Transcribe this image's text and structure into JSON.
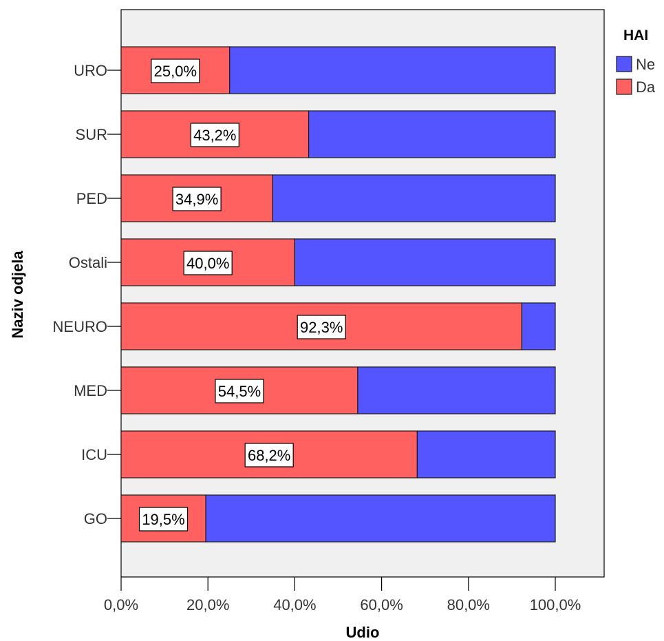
{
  "chart_data": {
    "type": "bar",
    "orientation": "horizontal",
    "stacked": true,
    "title": "",
    "xlabel": "Udio",
    "ylabel": "Naziv odjela",
    "xlim": [
      0,
      100
    ],
    "xticks": [
      0,
      20,
      40,
      60,
      80,
      100
    ],
    "xtick_labels": [
      "0,0%",
      "20,0%",
      "40,0%",
      "60,0%",
      "80,0%",
      "100,0%"
    ],
    "categories": [
      "URO",
      "SUR",
      "PED",
      "Ostali",
      "NEURO",
      "MED",
      "ICU",
      "GO"
    ],
    "series": [
      {
        "name": "Da",
        "color": "#ff6060",
        "values": [
          25.0,
          43.2,
          34.9,
          40.0,
          92.3,
          54.5,
          68.2,
          19.5
        ],
        "labels": [
          "25,0%",
          "43,2%",
          "34,9%",
          "40,0%",
          "92,3%",
          "54,5%",
          "68,2%",
          "19,5%"
        ]
      },
      {
        "name": "Ne",
        "color": "#5555ff",
        "values": [
          75.0,
          56.8,
          65.1,
          60.0,
          7.7,
          45.5,
          31.8,
          80.5
        ]
      }
    ],
    "legend": {
      "title": "HAI",
      "placement": "right",
      "entries": [
        {
          "name": "Ne",
          "color": "#5555ff"
        },
        {
          "name": "Da",
          "color": "#ff6060"
        }
      ]
    },
    "grid": false,
    "plot_background": "#f0f0f0"
  }
}
